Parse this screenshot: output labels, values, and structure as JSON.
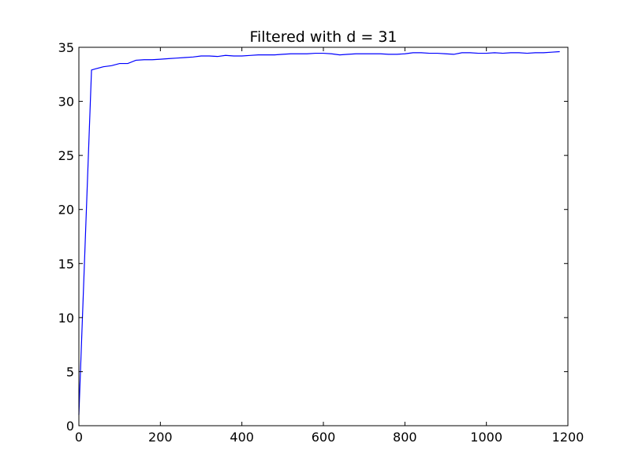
{
  "chart_data": {
    "type": "line",
    "title": "Filtered with d = 31",
    "xlabel": "",
    "ylabel": "",
    "xlim": [
      0,
      1200
    ],
    "ylim": [
      0,
      35
    ],
    "xticks": [
      0,
      200,
      400,
      600,
      800,
      1000,
      1200
    ],
    "yticks": [
      0,
      5,
      10,
      15,
      20,
      25,
      30,
      35
    ],
    "grid": false,
    "legend": "none",
    "series": [
      {
        "color": "#0000ff",
        "x": [
          0,
          31,
          40,
          60,
          80,
          100,
          120,
          140,
          160,
          180,
          200,
          220,
          240,
          260,
          280,
          300,
          320,
          340,
          360,
          380,
          400,
          420,
          440,
          460,
          480,
          500,
          520,
          540,
          560,
          580,
          600,
          620,
          640,
          660,
          680,
          700,
          720,
          740,
          760,
          780,
          800,
          820,
          840,
          860,
          880,
          900,
          920,
          940,
          960,
          980,
          1000,
          1020,
          1040,
          1060,
          1080,
          1100,
          1120,
          1140,
          1160,
          1180
        ],
        "y": [
          1.0,
          32.9,
          33.0,
          33.2,
          33.3,
          33.5,
          33.5,
          33.8,
          33.85,
          33.85,
          33.9,
          33.95,
          34.0,
          34.05,
          34.1,
          34.2,
          34.2,
          34.15,
          34.25,
          34.2,
          34.2,
          34.25,
          34.3,
          34.3,
          34.3,
          34.35,
          34.4,
          34.4,
          34.4,
          34.45,
          34.45,
          34.4,
          34.3,
          34.35,
          34.4,
          34.4,
          34.4,
          34.4,
          34.35,
          34.35,
          34.4,
          34.5,
          34.5,
          34.45,
          34.45,
          34.4,
          34.35,
          34.5,
          34.5,
          34.45,
          34.45,
          34.5,
          34.45,
          34.5,
          34.5,
          34.45,
          34.5,
          34.5,
          34.55,
          34.6
        ]
      }
    ]
  }
}
